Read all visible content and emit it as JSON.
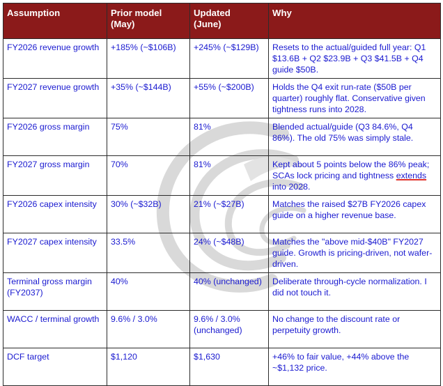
{
  "table": {
    "headers": [
      "Assumption",
      "Prior model\n(May)",
      "Updated\n(June)",
      "Why"
    ],
    "rows": [
      {
        "assumption": "FY2026 revenue growth",
        "prior": "+185% (~$106B)",
        "updated": "+245% (~$129B)",
        "why": "Resets to the actual/guided full year: Q1 $13.6B + Q2 $23.9B + Q3 $41.5B + Q4 guide $50B."
      },
      {
        "assumption": "FY2027 revenue growth",
        "prior": "+35% (~$144B)",
        "updated": "+55% (~$200B)",
        "why": "Holds the Q4 exit run-rate ($50B per quarter) roughly flat. Conservative given tightness runs into 2028."
      },
      {
        "assumption": "FY2026 gross margin",
        "prior": "75%",
        "updated": "81%",
        "why": "Blended actual/guide (Q3 84.6%, Q4 86%). The old 75% was simply stale."
      },
      {
        "assumption": "FY2027 gross margin",
        "prior": "70%",
        "updated": "81%",
        "why_before": "Kept about 5 points below the 86% peak; SCAs lock pricing and tightness ",
        "why_underlined": "extends",
        "why_after": " into 2028."
      },
      {
        "assumption": "FY2026 capex intensity",
        "prior": "30% (~$32B)",
        "updated": "21% (~$27B)",
        "why": "Matches the raised $27B FY2026 capex guide on a higher revenue base."
      },
      {
        "assumption": "FY2027 capex intensity",
        "prior": "33.5%",
        "updated": "24% (~$48B)",
        "why": "Matches the \"above mid-$40B\" FY2027 guide. Growth is pricing-driven, not wafer-driven."
      },
      {
        "assumption": "Terminal gross margin (FY2037)",
        "prior": "40%",
        "updated": "40% (unchanged)",
        "why": "Deliberate through-cycle normalization. I did not touch it."
      },
      {
        "assumption": "WACC / terminal growth",
        "prior": "9.6% / 3.0%",
        "updated": "9.6% / 3.0% (unchanged)",
        "why": "No change to the discount rate or perpetuity growth."
      },
      {
        "assumption": "DCF target",
        "prior": "$1,120",
        "updated": "$1,630",
        "why": "+46% to fair value, +44% above the ~$1,132 price."
      }
    ]
  },
  "colors": {
    "header_bg": "#8b1a1a",
    "header_text": "#ffffff",
    "cell_text": "#1a1ad0",
    "border": "#2b2b2b",
    "underline": "#e0302a",
    "watermark": "#d6d6d6"
  },
  "watermark_icon": "swirl-logo-watermark"
}
